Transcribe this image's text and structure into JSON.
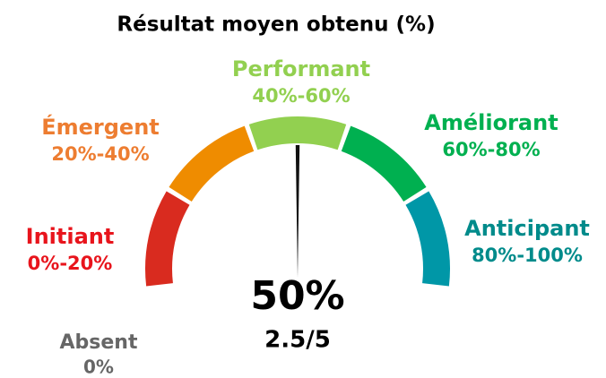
{
  "chart_data": {
    "type": "gauge",
    "title": "Résultat moyen obtenu (%)",
    "min": 0,
    "max": 100,
    "value": 50,
    "value_label": "50%",
    "score_label": "2.5/5",
    "segments": [
      {
        "name": "Initiant",
        "label": "0%-20%",
        "from": 0,
        "to": 20,
        "color": "#d92b1f",
        "text_color": "#e8141c"
      },
      {
        "name": "Émergent",
        "label": "20%-40%",
        "from": 20,
        "to": 40,
        "color": "#ef8c00",
        "text_color": "#ed7d31"
      },
      {
        "name": "Performant",
        "label": "40%-60%",
        "from": 40,
        "to": 60,
        "color": "#92d050",
        "text_color": "#92d050"
      },
      {
        "name": "Améliorant",
        "label": "60%-80%",
        "from": 60,
        "to": 80,
        "color": "#00b050",
        "text_color": "#00b050"
      },
      {
        "name": "Anticipant",
        "label": "80%-100%",
        "from": 80,
        "to": 100,
        "color": "#0097a7",
        "text_color": "#008b8b"
      }
    ],
    "absent": {
      "name": "Absent",
      "label": "0%",
      "text_color": "#666666"
    }
  }
}
